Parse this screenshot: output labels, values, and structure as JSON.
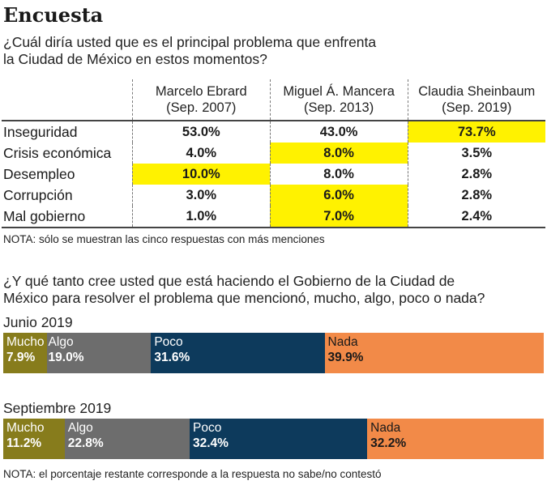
{
  "title": "Encuesta",
  "question1": [
    "¿Cuál diría usted que es el principal problema que enfrenta",
    "la Ciudad de México en estos momentos?"
  ],
  "table": {
    "columns": [
      {
        "name": "Marcelo Ebrard",
        "date": "(Sep. 2007)"
      },
      {
        "name": "Miguel Á. Mancera",
        "date": "(Sep. 2013)"
      },
      {
        "name": "Claudia Sheinbaum",
        "date": "(Sep. 2019)"
      }
    ],
    "rows": [
      {
        "label": "Inseguridad",
        "values": [
          "53.0%",
          "43.0%",
          "73.7%"
        ],
        "highlight": [
          false,
          false,
          true
        ]
      },
      {
        "label": "Crisis económica",
        "values": [
          "4.0%",
          "8.0%",
          "3.5%"
        ],
        "highlight": [
          false,
          true,
          false
        ]
      },
      {
        "label": "Desempleo",
        "values": [
          "10.0%",
          "8.0%",
          "2.8%"
        ],
        "highlight": [
          true,
          false,
          false
        ]
      },
      {
        "label": "Corrupción",
        "values": [
          "3.0%",
          "6.0%",
          "2.8%"
        ],
        "highlight": [
          false,
          true,
          false
        ]
      },
      {
        "label": "Mal gobierno",
        "values": [
          "1.0%",
          "7.0%",
          "2.4%"
        ],
        "highlight": [
          false,
          true,
          false
        ]
      }
    ],
    "highlight_color": "#fff200"
  },
  "note1": "NOTA: sólo se muestran las cinco respuestas con más menciones",
  "question2": [
    "¿Y qué tanto cree usted que está haciendo el Gobierno de la Ciudad de",
    "México para resolver el problema que mencionó, mucho, algo, poco o nada?"
  ],
  "chart_data": {
    "type": "bar",
    "stacked": true,
    "orientation": "horizontal",
    "categories": [
      "Junio 2019",
      "Septiembre 2019"
    ],
    "series": [
      {
        "name": "Mucho",
        "values": [
          7.9,
          11.2
        ],
        "labels": [
          "7.9%",
          "11.2%"
        ],
        "color": "#877c1c"
      },
      {
        "name": "Algo",
        "values": [
          19.0,
          22.8
        ],
        "labels": [
          "19.0%",
          "22.8%"
        ],
        "color": "#6d6d6d"
      },
      {
        "name": "Poco",
        "values": [
          31.6,
          32.4
        ],
        "labels": [
          "31.6%",
          "32.4%"
        ],
        "color": "#0d3a5c"
      },
      {
        "name": "Nada",
        "values": [
          39.9,
          32.2
        ],
        "labels": [
          "39.9%",
          "32.2%"
        ],
        "color": "#f28a48"
      }
    ]
  },
  "note2": "NOTA: el porcentaje restante corresponde a la respuesta no sabe/no contestó"
}
